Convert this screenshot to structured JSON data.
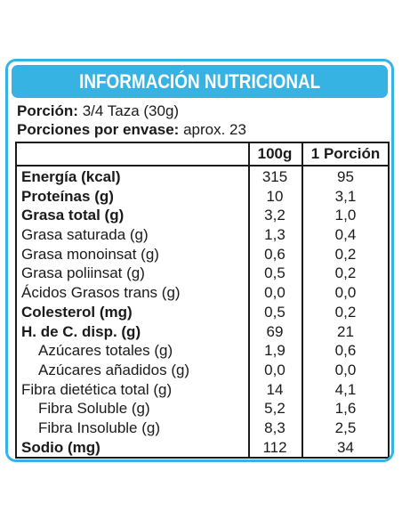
{
  "title": "INFORMACIÓN NUTRICIONAL",
  "serving": {
    "portion_label": "Porción:",
    "portion_value": "3/4 Taza (30g)",
    "per_pack_label": "Porciones por envase:",
    "per_pack_value": "aprox. 23"
  },
  "columns": [
    "100g",
    "1 Porción"
  ],
  "rows": [
    {
      "name": "Energía (kcal)",
      "v100": "315",
      "vport": "95",
      "bold": true,
      "indent": false
    },
    {
      "name": "Proteínas (g)",
      "v100": "10",
      "vport": "3,1",
      "bold": true,
      "indent": false
    },
    {
      "name": "Grasa total (g)",
      "v100": "3,2",
      "vport": "1,0",
      "bold": true,
      "indent": false
    },
    {
      "name": "Grasa saturada (g)",
      "v100": "1,3",
      "vport": "0,4",
      "bold": false,
      "indent": false
    },
    {
      "name": "Grasa monoinsat (g)",
      "v100": "0,6",
      "vport": "0,2",
      "bold": false,
      "indent": false
    },
    {
      "name": "Grasa poliinsat (g)",
      "v100": "0,5",
      "vport": "0,2",
      "bold": false,
      "indent": false
    },
    {
      "name": "Ácidos Grasos trans (g)",
      "v100": "0,0",
      "vport": "0,0",
      "bold": false,
      "indent": false
    },
    {
      "name": "Colesterol (mg)",
      "v100": "0,5",
      "vport": "0,2",
      "bold": true,
      "indent": false
    },
    {
      "name": "H. de C. disp. (g)",
      "v100": "69",
      "vport": "21",
      "bold": true,
      "indent": false
    },
    {
      "name": "Azúcares totales (g)",
      "v100": "1,9",
      "vport": "0,6",
      "bold": false,
      "indent": true
    },
    {
      "name": "Azúcares añadidos (g)",
      "v100": "0,0",
      "vport": "0,0",
      "bold": false,
      "indent": true
    },
    {
      "name": "Fibra dietética total (g)",
      "v100": "14",
      "vport": "4,1",
      "bold": false,
      "indent": false
    },
    {
      "name": "Fibra Soluble (g)",
      "v100": "5,2",
      "vport": "1,6",
      "bold": false,
      "indent": true
    },
    {
      "name": "Fibra Insoluble (g)",
      "v100": "8,3",
      "vport": "2,5",
      "bold": false,
      "indent": true
    },
    {
      "name": "Sodio (mg)",
      "v100": "112",
      "vport": "34",
      "bold": true,
      "indent": false
    }
  ],
  "colors": {
    "accent": "#36b3e3",
    "text": "#1a1a1a"
  }
}
